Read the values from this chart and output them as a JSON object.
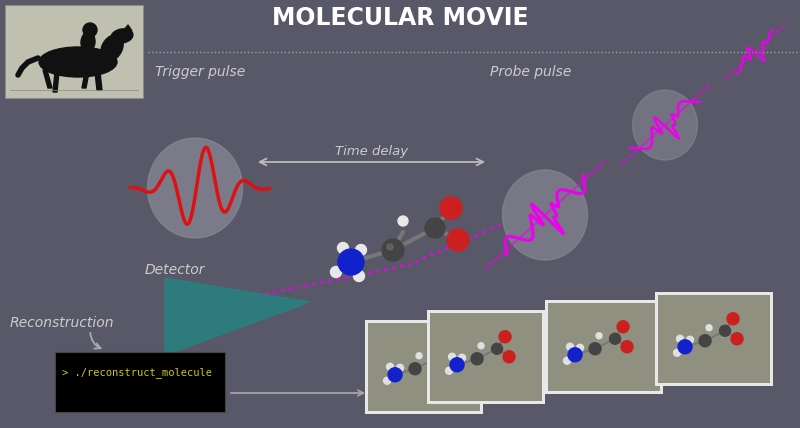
{
  "title": "MOLECULAR MOVIE",
  "bg_color": "#585868",
  "title_color": "#ffffff",
  "trigger_label": "Trigger pulse",
  "probe_label": "Probe pulse",
  "time_delay_label": "Time delay",
  "detector_label": "Detector",
  "reconstruction_label": "Reconstruction",
  "terminal_text": "> ./reconstruct_molecule",
  "red_pulse_color": "#dd1111",
  "magenta_pulse_color": "#ee00ee",
  "ellipse_color": "#8888aa",
  "teal_color": "#2a8080",
  "label_color": "#cccccc",
  "dotted_line_color": "#aaaaaa",
  "horse_bg": "#c0c0b0",
  "frame_bg": "#909080",
  "frame_border": "#e8e8e8",
  "terminal_bg": "#000000",
  "terminal_text_color": "#cccc00",
  "arrow_color": "#aaaaaa"
}
